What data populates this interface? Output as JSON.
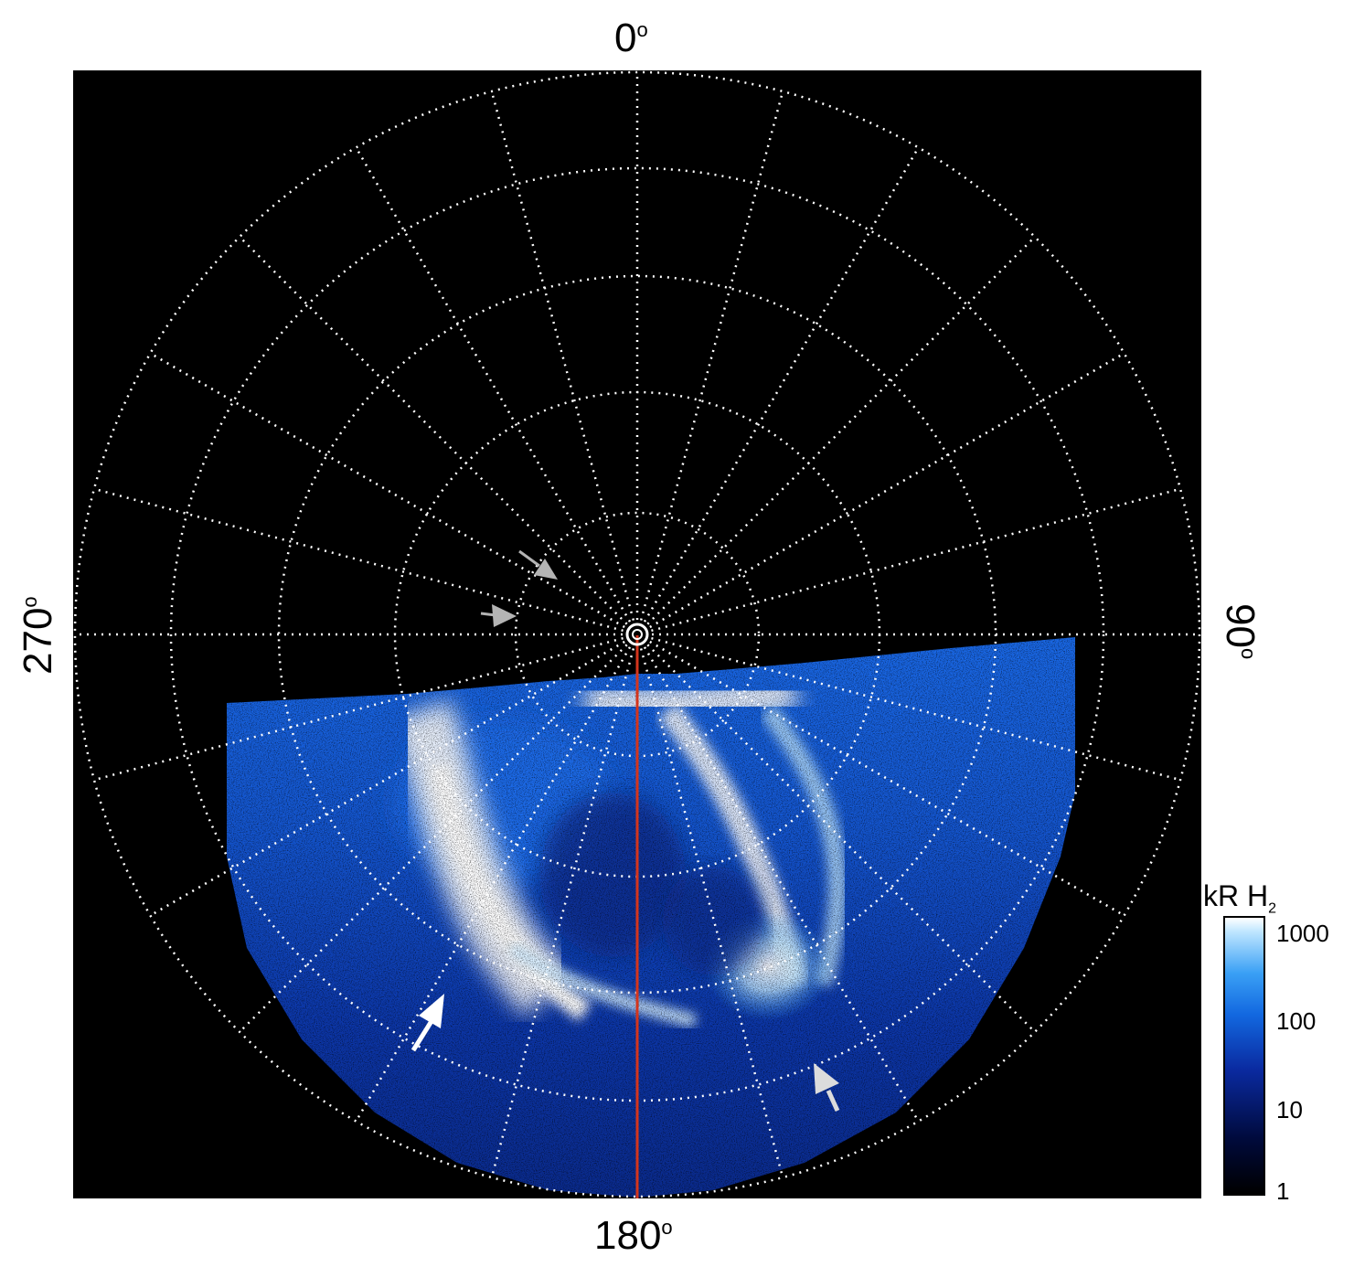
{
  "labels": {
    "top": "0",
    "right": "90",
    "bottom": "180",
    "left": "270",
    "degree": "o"
  },
  "colorbar": {
    "title": "kR H",
    "title_sub": "2",
    "ticks": [
      "1000",
      "100",
      "10",
      "1"
    ],
    "scale": "log",
    "range": [
      1,
      1000
    ]
  },
  "colors": {
    "background": "#000000",
    "grid": "#ffffff",
    "meridian": "#d4351c",
    "aurora_bright": "#ffffff",
    "aurora_mid": "#2a8ef0",
    "aurora_dim": "#0a2a9a",
    "arrow_gray": "#b4b4b4",
    "arrow_white": "#ffffff"
  }
}
